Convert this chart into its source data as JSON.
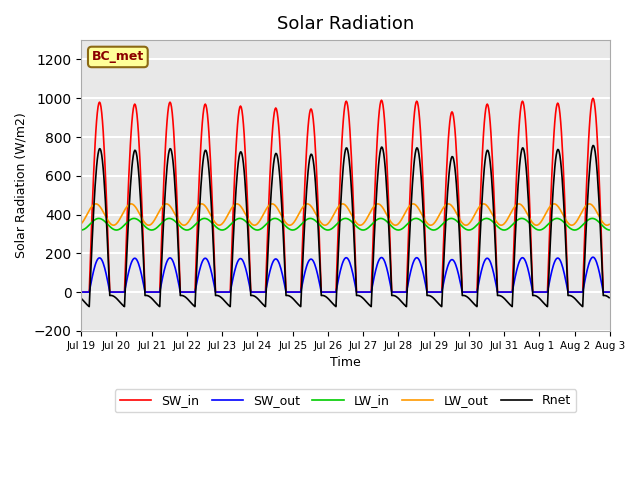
{
  "title": "Solar Radiation",
  "ylabel": "Solar Radiation (W/m2)",
  "xlabel": "Time",
  "annotation_label": "BC_met",
  "ylim": [
    -200,
    1300
  ],
  "yticks": [
    -200,
    0,
    200,
    400,
    600,
    800,
    1000,
    1200
  ],
  "x_tick_labels": [
    "Jul 19",
    "Jul 20",
    "Jul 21",
    "Jul 22",
    "Jul 23",
    "Jul 24",
    "Jul 25",
    "Jul 26",
    "Jul 27",
    "Jul 28",
    "Jul 29",
    "Jul 30",
    "Jul 31",
    "Aug 1",
    "Aug 2",
    "Aug 3"
  ],
  "colors": {
    "SW_in": "#ff0000",
    "SW_out": "#0000ff",
    "LW_in": "#00cc00",
    "LW_out": "#ff9900",
    "Rnet": "#000000"
  },
  "plot_bg": "#e8e8e8",
  "n_days": 15,
  "dt_hours": 0.5
}
